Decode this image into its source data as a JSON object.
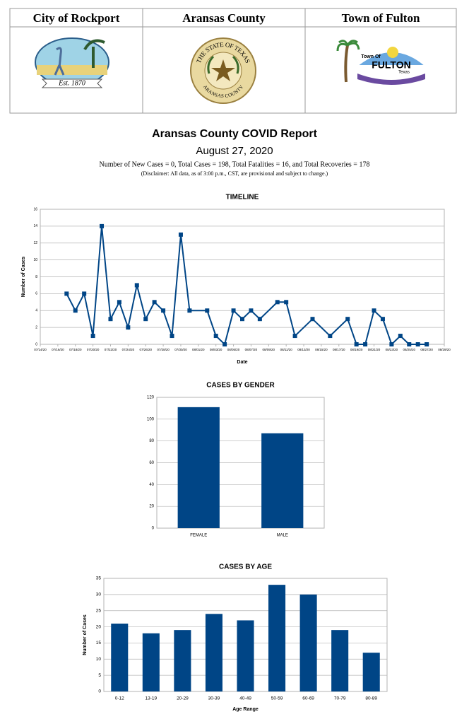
{
  "header": {
    "columns": [
      "City of Rockport",
      "Aransas County",
      "Town of Fulton"
    ],
    "logos": {
      "rockport": "Est. 1870",
      "county_top": "THE STATE OF TEXAS",
      "county_bottom": "ARANSAS COUNTY",
      "fulton_top": "Town Of",
      "fulton_name": "FULTON",
      "fulton_bottom": "Texas"
    }
  },
  "report": {
    "title": "Aransas County COVID Report",
    "date": "August 27, 2020",
    "summary": "Number of New Cases = 0, Total Cases = 198, Total Fatalities = 16, and Total Recoveries = 178",
    "disclaimer": "(Disclaimer: All data, as of 3:00 p.m., CST, are provisional and subject to change.)"
  },
  "chart_data": [
    {
      "type": "line",
      "title": "TIMELINE",
      "x_label": "Date",
      "y_label": "Number of Cases",
      "color": "#004586",
      "grid": true,
      "x": [
        "07/17/20",
        "07/18/20",
        "07/19/20",
        "07/20/20",
        "07/21/20",
        "07/22/20",
        "07/23/20",
        "07/24/20",
        "07/25/20",
        "07/26/20",
        "07/27/20",
        "07/28/20",
        "07/29/20",
        "07/30/20",
        "07/31/20",
        "08/02/20",
        "08/03/20",
        "08/04/20",
        "08/05/20",
        "08/06/20",
        "08/07/20",
        "08/08/20",
        "08/10/20",
        "08/11/20",
        "08/12/20",
        "08/14/20",
        "08/16/20",
        "08/18/20",
        "08/19/20",
        "08/20/20",
        "08/21/20",
        "08/22/20",
        "08/23/20",
        "08/24/20",
        "08/25/20",
        "08/26/20",
        "08/27/20"
      ],
      "values": [
        6,
        4,
        6,
        1,
        14,
        3,
        5,
        2,
        7,
        3,
        5,
        4,
        1,
        13,
        4,
        4,
        1,
        0,
        4,
        3,
        4,
        3,
        5,
        5,
        1,
        3,
        1,
        3,
        0,
        0,
        4,
        3,
        0,
        1,
        0,
        0,
        0
      ],
      "xlim": [
        "07/14/20",
        "08/29/20"
      ],
      "xticks": [
        "07/14/20",
        "07/16/20",
        "07/18/20",
        "07/20/20",
        "07/22/20",
        "07/24/20",
        "07/26/20",
        "07/28/20",
        "07/30/20",
        "08/01/20",
        "08/03/20",
        "08/05/20",
        "08/07/20",
        "08/09/20",
        "08/11/20",
        "08/13/20",
        "08/15/20",
        "08/17/20",
        "08/19/20",
        "08/21/20",
        "08/23/20",
        "08/25/20",
        "08/27/20",
        "08/29/20"
      ],
      "ylim": [
        0,
        16
      ],
      "yticks": [
        0,
        2,
        4,
        6,
        8,
        10,
        12,
        14,
        16
      ]
    },
    {
      "type": "bar",
      "title": "CASES BY GENDER",
      "color": "#004586",
      "grid": true,
      "categories": [
        "FEMALE",
        "MALE"
      ],
      "values": [
        111,
        87
      ],
      "ylim": [
        0,
        120
      ],
      "yticks": [
        0,
        20,
        40,
        60,
        80,
        100,
        120
      ]
    },
    {
      "type": "bar",
      "title": "CASES BY AGE",
      "x_label": "Age Range",
      "y_label": "Number of Cases",
      "color": "#004586",
      "grid": true,
      "categories": [
        "0-12",
        "13-19",
        "20-29",
        "30-39",
        "40-49",
        "50-59",
        "60-69",
        "70-79",
        "80-89"
      ],
      "values": [
        21,
        18,
        19,
        24,
        22,
        33,
        30,
        19,
        12
      ],
      "ylim": [
        0,
        35
      ],
      "yticks": [
        0,
        5,
        10,
        15,
        20,
        25,
        30,
        35
      ]
    }
  ]
}
